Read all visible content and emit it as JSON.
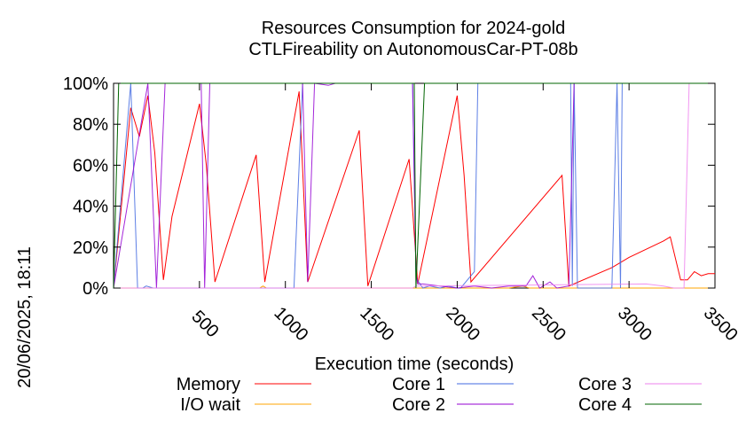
{
  "chart_data": {
    "type": "line",
    "title": "Resources Consumption for 2024-gold",
    "subtitle": "CTLFireability on AutonomousCar-PT-08b",
    "xlabel": "Execution time (seconds)",
    "side_label": "20/06/2025, 18:11",
    "xlim": [
      0,
      3500
    ],
    "ylim": [
      0,
      100
    ],
    "x_ticks": [
      500,
      1000,
      1500,
      2000,
      2500,
      3000,
      3500
    ],
    "y_ticks": [
      0,
      20,
      40,
      60,
      80,
      100
    ],
    "y_tick_suffix": "%",
    "grid": false,
    "legend_position": "bottom",
    "series": [
      {
        "name": "Memory",
        "color": "#ff0000",
        "x": [
          0,
          100,
          150,
          200,
          240,
          290,
          340,
          500,
          540,
          590,
          830,
          880,
          1080,
          1130,
          1430,
          1480,
          1720,
          1770,
          2000,
          2040,
          2080,
          2610,
          2650,
          2900,
          3000,
          3200,
          3240,
          3300,
          3340,
          3380,
          3420,
          3460,
          3500
        ],
        "y": [
          0,
          88,
          74,
          94,
          66,
          4,
          35,
          90,
          60,
          3,
          65,
          3,
          96,
          3,
          77,
          1,
          63,
          2,
          94,
          55,
          3,
          55,
          1,
          10,
          15,
          23,
          25,
          4,
          4,
          8,
          6,
          7,
          7
        ]
      },
      {
        "name": "I/O wait",
        "color": "#ffa500",
        "x": [
          0,
          850,
          870,
          890,
          2300,
          2380,
          2420,
          3500
        ],
        "y": [
          0,
          0,
          1,
          0,
          0,
          1,
          0,
          0
        ]
      },
      {
        "name": "Core 1",
        "color": "#4169e1",
        "x": [
          0,
          100,
          140,
          170,
          190,
          230,
          290,
          530,
          1050,
          1100,
          1120,
          1740,
          1760,
          1800,
          1840,
          1900,
          1950,
          2000,
          2020,
          2100,
          2120,
          2660,
          2670,
          2680,
          2700,
          2900,
          2930,
          2950,
          2960,
          3500
        ],
        "y": [
          0,
          100,
          0,
          0,
          1,
          0,
          0,
          0,
          0,
          100,
          100,
          100,
          5,
          0,
          1,
          0,
          1,
          0,
          0,
          8,
          100,
          100,
          1,
          100,
          0,
          0,
          100,
          0,
          100,
          100
        ],
        "fade": true
      },
      {
        "name": "Core 2",
        "color": "#9400d3",
        "x": [
          0,
          200,
          250,
          300,
          510,
          530,
          560,
          1100,
          1130,
          1170,
          1250,
          1290,
          1740,
          1760,
          1770,
          1800,
          1900,
          2000,
          2100,
          2200,
          2300,
          2400,
          2440,
          2480,
          2540,
          2580,
          2650,
          2680,
          2700,
          3300,
          3500
        ],
        "y": [
          0,
          100,
          0,
          100,
          100,
          0,
          100,
          100,
          3,
          100,
          99,
          100,
          100,
          8,
          2,
          2,
          1,
          0,
          1,
          0,
          1,
          1,
          6,
          0,
          3,
          0,
          1,
          100,
          100,
          100,
          100
        ],
        "fade": true
      },
      {
        "name": "Core 3",
        "color": "#ee82ee",
        "x": [
          0,
          1740,
          1760,
          3100,
          3200,
          3260,
          3320,
          3350,
          3500
        ],
        "y": [
          0,
          0,
          1,
          2,
          1,
          0,
          0,
          100,
          100
        ],
        "fade": true
      },
      {
        "name": "Core 4",
        "color": "#006400",
        "x": [
          0,
          30,
          40,
          100,
          1730,
          1750,
          1760,
          1810,
          1830,
          3500
        ],
        "y": [
          0,
          100,
          100,
          100,
          100,
          100,
          0,
          100,
          100,
          100
        ]
      }
    ]
  }
}
